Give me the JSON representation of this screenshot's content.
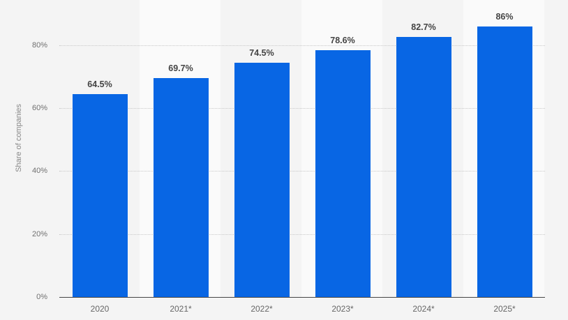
{
  "chart_data": {
    "type": "bar",
    "title": "",
    "xlabel": "",
    "ylabel": "Share of companies",
    "categories": [
      "2020",
      "2021*",
      "2022*",
      "2023*",
      "2024*",
      "2025*"
    ],
    "values": [
      64.5,
      69.7,
      74.5,
      78.6,
      82.7,
      86
    ],
    "value_labels": [
      "64.5%",
      "69.7%",
      "74.5%",
      "78.6%",
      "82.7%",
      "86%"
    ],
    "yticks": [
      "0%",
      "20%",
      "40%",
      "60%",
      "80%"
    ],
    "ylim": [
      0,
      90
    ],
    "grid": true,
    "bar_color": "#0866e4"
  }
}
